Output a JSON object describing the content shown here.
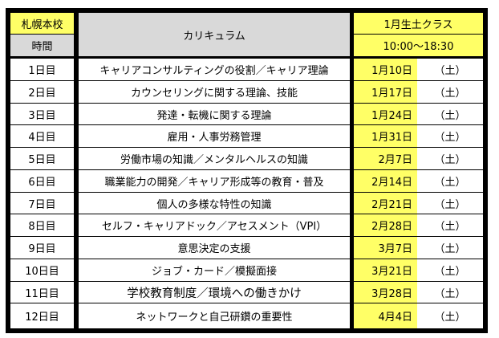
{
  "header": {
    "campus": "札幌本校",
    "time_label": "時間",
    "curriculum_label": "カリキュラム",
    "class_name": "1月生土クラス",
    "class_time": "10:00〜18:30"
  },
  "colors": {
    "highlight_yellow": "#ffff66",
    "header_gray": "#d9d9d9",
    "border": "#000000"
  },
  "rows": [
    {
      "day": "1日目",
      "topic": "キャリアコンサルティングの役割／キャリア理論",
      "date": "1月10日",
      "weekday": "（土）"
    },
    {
      "day": "2日目",
      "topic": "カウンセリングに関する理論、技能",
      "date": "1月17日",
      "weekday": "（土）"
    },
    {
      "day": "3日目",
      "topic": "発達・転機に関する理論",
      "date": "1月24日",
      "weekday": "（土）"
    },
    {
      "day": "4日目",
      "topic": "雇用・人事労務管理",
      "date": "1月31日",
      "weekday": "（土）"
    },
    {
      "day": "5日目",
      "topic": "労働市場の知識／メンタルヘルスの知識",
      "date": "2月7日",
      "weekday": "（土）"
    },
    {
      "day": "6日目",
      "topic": "職業能力の開発／キャリア形成等の教育・普及",
      "date": "2月14日",
      "weekday": "（土）"
    },
    {
      "day": "7日目",
      "topic": "個人の多様な特性の知識",
      "date": "2月21日",
      "weekday": "（土）"
    },
    {
      "day": "8日目",
      "topic": "セルフ・キャリアドック／アセスメント（VPI）",
      "date": "2月28日",
      "weekday": "（土）"
    },
    {
      "day": "9日目",
      "topic": "意思決定の支援",
      "date": "3月7日",
      "weekday": "（土）"
    },
    {
      "day": "10日目",
      "topic": "ジョブ・カード／模擬面接",
      "date": "3月21日",
      "weekday": "（土）"
    },
    {
      "day": "11日目",
      "topic": "学校教育制度／環境への働きかけ",
      "date": "3月28日",
      "weekday": "（土）"
    },
    {
      "day": "12日目",
      "topic": "ネットワークと自己研鑽の重要性",
      "date": "4月4日",
      "weekday": "（土）"
    }
  ]
}
